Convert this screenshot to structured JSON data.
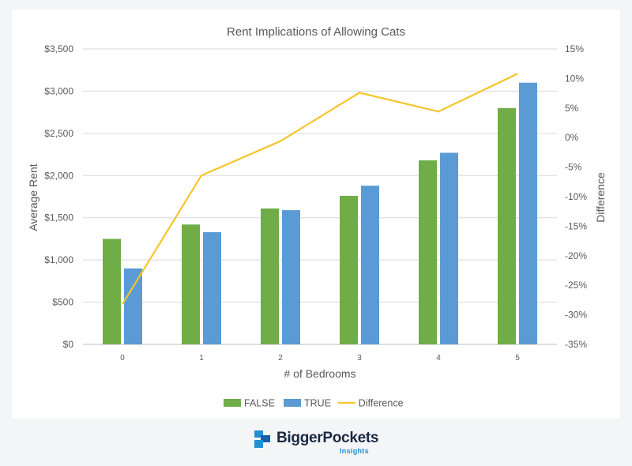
{
  "chart_data": {
    "type": "bar",
    "title": "Rent Implications of Allowing Cats",
    "xlabel": "# of Bedrooms",
    "ylabel": "Average Rent",
    "y2label": "Difference",
    "categories": [
      "0",
      "1",
      "2",
      "3",
      "4",
      "5"
    ],
    "ylim": [
      0,
      3500
    ],
    "y2lim": [
      -35,
      15
    ],
    "y_ticks": [
      "$0",
      "$500",
      "$1,000",
      "$1,500",
      "$2,000",
      "$2,500",
      "$3,000",
      "$3,500"
    ],
    "y2_ticks": [
      "-35%",
      "-30%",
      "-25%",
      "-20%",
      "-15%",
      "-10%",
      "-5%",
      "0%",
      "5%",
      "10%",
      "15%"
    ],
    "series": [
      {
        "name": "FALSE",
        "type": "bar",
        "axis": "left",
        "color": "#70ad47",
        "values": [
          1250,
          1420,
          1610,
          1760,
          2180,
          2800
        ]
      },
      {
        "name": "TRUE",
        "type": "bar",
        "axis": "left",
        "color": "#5b9bd5",
        "values": [
          900,
          1330,
          1590,
          1880,
          2270,
          3100
        ]
      },
      {
        "name": "Difference",
        "type": "line",
        "axis": "right",
        "color": "#f5c52b",
        "values": [
          -28.2,
          -6.4,
          -0.6,
          7.6,
          4.4,
          10.8
        ]
      }
    ],
    "grid": true,
    "legend": "bottom"
  },
  "brand": {
    "name": "BiggerPockets",
    "sub": "Insights"
  }
}
